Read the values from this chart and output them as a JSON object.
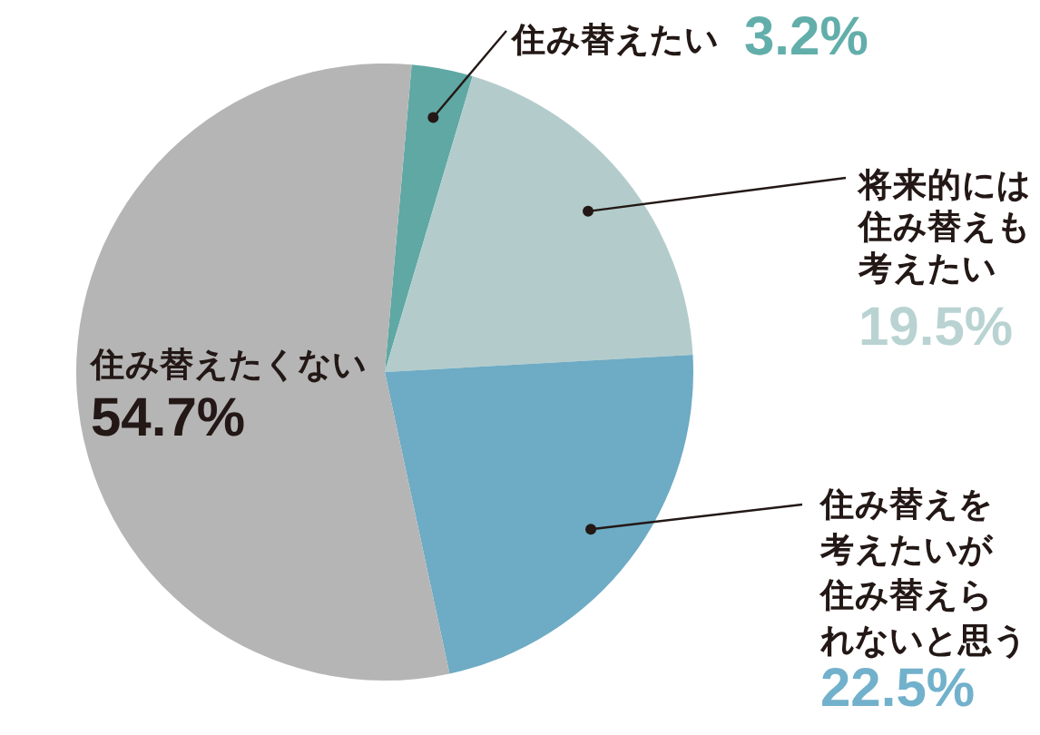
{
  "chart_data": {
    "type": "pie",
    "categories": [
      "住み替えたい",
      "将来的には住み替えも考えたい",
      "住み替えを考えたいが住み替えられないと思う",
      "住み替えたくない"
    ],
    "values": [
      3.2,
      19.5,
      22.5,
      54.7
    ],
    "colors": [
      "#5fa8a4",
      "#b3cccb",
      "#6eabc4",
      "#b5b5b5"
    ],
    "value_labels": [
      "3.2%",
      "19.5%",
      "22.5%",
      "54.7%"
    ]
  }
}
